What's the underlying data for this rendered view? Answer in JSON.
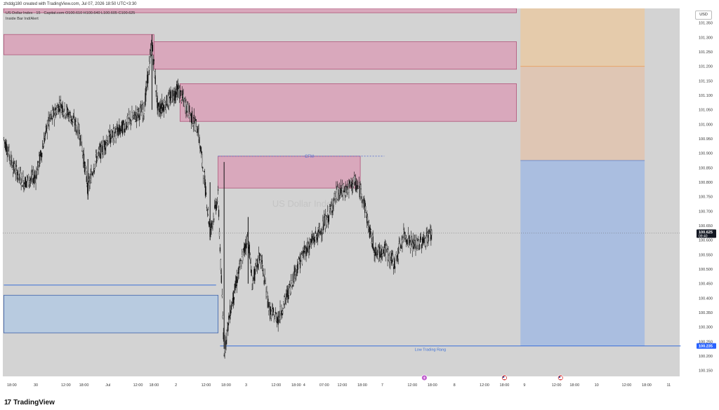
{
  "header": {
    "created_text": "zhddg180 created with TradingView.com, Jul 07, 2026 18:50 UTC+3:30"
  },
  "legend": {
    "symbol_line": "US Dollar Index · 15 · Capital.com  O100.610  H100.640  L100.605  C100.625",
    "indicator": "Inside Bar Ind/Alert"
  },
  "currency_button": "USD",
  "watermark": {
    "symbol": "DXY, 15",
    "name": "US Dollar Index"
  },
  "footer": {
    "logo_mark": "17",
    "logo_text": "TradingView"
  },
  "colors": {
    "supply_zone_fill": "#d9a8bc",
    "supply_zone_border": "#b0557a",
    "demand_zone_fill": "#b8cbe0",
    "demand_zone_border": "#3a5fa8",
    "long_target_fill": "#e8c9a3",
    "long_stop_fill": "#a8bde0",
    "plot_background": "#d3d3d3",
    "candle": "#111111",
    "low_line": "#3a6fd8",
    "price_badge": "#131722",
    "low_badge": "#2962ff"
  },
  "chart_data": {
    "type": "candlestick",
    "symbol": "DXY",
    "timeframe": "15",
    "ylim": [
      100.13,
      101.4
    ],
    "y_ticks": [
      "101.350",
      "101.300",
      "101.250",
      "101.200",
      "101.150",
      "101.100",
      "101.050",
      "101.000",
      "100.950",
      "100.900",
      "100.850",
      "100.800",
      "100.750",
      "100.700",
      "100.650",
      "100.600",
      "100.550",
      "100.500",
      "100.450",
      "100.400",
      "100.350",
      "100.300",
      "100.250",
      "100.200",
      "100.150"
    ],
    "x_ticks": [
      {
        "label": "18:00",
        "bar": 4
      },
      {
        "label": "30",
        "bar": 16
      },
      {
        "label": "12:00",
        "bar": 31
      },
      {
        "label": "18:00",
        "bar": 40
      },
      {
        "label": "Jul",
        "bar": 52
      },
      {
        "label": "12:00",
        "bar": 67
      },
      {
        "label": "18:00",
        "bar": 75
      },
      {
        "label": "2",
        "bar": 86
      },
      {
        "label": "12:00",
        "bar": 101
      },
      {
        "label": "18:00",
        "bar": 111
      },
      {
        "label": "3",
        "bar": 121
      },
      {
        "label": "12:00",
        "bar": 136
      },
      {
        "label": "18:00",
        "bar": 146
      },
      {
        "label": "4",
        "bar": 150
      },
      {
        "label": "07:00",
        "bar": 160
      },
      {
        "label": "12:00",
        "bar": 169
      },
      {
        "label": "18:00",
        "bar": 179
      },
      {
        "label": "7",
        "bar": 189
      },
      {
        "label": "12:00",
        "bar": 204
      },
      {
        "label": "18:00",
        "bar": 214
      },
      {
        "label": "8",
        "bar": 225
      },
      {
        "label": "12:00",
        "bar": 240
      },
      {
        "label": "18:00",
        "bar": 250
      },
      {
        "label": "9",
        "bar": 260
      },
      {
        "label": "12:00",
        "bar": 276
      },
      {
        "label": "18:00",
        "bar": 285
      },
      {
        "label": "10",
        "bar": 296
      },
      {
        "label": "12:00",
        "bar": 311
      },
      {
        "label": "18:00",
        "bar": 321
      },
      {
        "label": "11",
        "bar": 332
      }
    ],
    "total_bars": 338,
    "price_path": [
      {
        "bar": 0,
        "price": 100.95
      },
      {
        "bar": 5,
        "price": 100.85
      },
      {
        "bar": 10,
        "price": 100.8
      },
      {
        "bar": 16,
        "price": 100.82
      },
      {
        "bar": 22,
        "price": 101.0
      },
      {
        "bar": 28,
        "price": 101.07
      },
      {
        "bar": 33,
        "price": 101.03
      },
      {
        "bar": 38,
        "price": 100.97
      },
      {
        "bar": 42,
        "price": 100.78
      },
      {
        "bar": 46,
        "price": 100.88
      },
      {
        "bar": 52,
        "price": 100.95
      },
      {
        "bar": 58,
        "price": 100.98
      },
      {
        "bar": 64,
        "price": 101.02
      },
      {
        "bar": 70,
        "price": 101.05
      },
      {
        "bar": 74,
        "price": 101.28
      },
      {
        "bar": 77,
        "price": 101.05
      },
      {
        "bar": 82,
        "price": 101.08
      },
      {
        "bar": 87,
        "price": 101.12
      },
      {
        "bar": 92,
        "price": 101.05
      },
      {
        "bar": 97,
        "price": 100.98
      },
      {
        "bar": 100,
        "price": 100.82
      },
      {
        "bar": 103,
        "price": 100.63
      },
      {
        "bar": 107,
        "price": 100.75
      },
      {
        "bar": 110,
        "price": 100.22
      },
      {
        "bar": 113,
        "price": 100.35
      },
      {
        "bar": 117,
        "price": 100.48
      },
      {
        "bar": 122,
        "price": 100.62
      },
      {
        "bar": 124,
        "price": 100.45
      },
      {
        "bar": 128,
        "price": 100.55
      },
      {
        "bar": 133,
        "price": 100.35
      },
      {
        "bar": 137,
        "price": 100.33
      },
      {
        "bar": 141,
        "price": 100.4
      },
      {
        "bar": 146,
        "price": 100.5
      },
      {
        "bar": 151,
        "price": 100.57
      },
      {
        "bar": 157,
        "price": 100.62
      },
      {
        "bar": 162,
        "price": 100.68
      },
      {
        "bar": 166,
        "price": 100.76
      },
      {
        "bar": 170,
        "price": 100.77
      },
      {
        "bar": 175,
        "price": 100.8
      },
      {
        "bar": 179,
        "price": 100.76
      },
      {
        "bar": 183,
        "price": 100.62
      },
      {
        "bar": 186,
        "price": 100.55
      },
      {
        "bar": 190,
        "price": 100.57
      },
      {
        "bar": 195,
        "price": 100.52
      },
      {
        "bar": 200,
        "price": 100.62
      },
      {
        "bar": 205,
        "price": 100.58
      },
      {
        "bar": 210,
        "price": 100.6
      },
      {
        "bar": 213,
        "price": 100.625
      }
    ],
    "supply_zones": [
      {
        "bar_start": 0,
        "bar_end": 256,
        "top": 101.4,
        "bottom": 101.385
      },
      {
        "bar_start": 0,
        "bar_end": 75,
        "top": 101.31,
        "bottom": 101.24
      },
      {
        "bar_start": 75,
        "bar_end": 256,
        "top": 101.285,
        "bottom": 101.19
      },
      {
        "bar_start": 88,
        "bar_end": 256,
        "top": 101.14,
        "bottom": 101.01
      },
      {
        "bar_start": 107,
        "bar_end": 178,
        "top": 100.89,
        "bottom": 100.78
      }
    ],
    "demand_zones": [
      {
        "bar_start": 0,
        "bar_end": 107,
        "top": 100.41,
        "bottom": 100.28
      }
    ],
    "horizontal_lines": [
      {
        "bar_start": 0,
        "bar_end": 106,
        "price": 100.445
      },
      {
        "bar_start": 108,
        "bar_end": 338,
        "price": 100.235
      }
    ],
    "cfm_line": {
      "bar_start": 107,
      "bar_end": 190,
      "price": 100.89,
      "label": "CFM"
    },
    "position_tool": {
      "bar_start": 258,
      "bar_end": 320,
      "target": 101.4,
      "entry": 101.2,
      "stop": 100.235
    },
    "current_price": {
      "value": "100.625",
      "countdown": "09:40",
      "price": 100.625
    },
    "low_label": {
      "value": "100.235",
      "text": "Low Trading Rang",
      "price": 100.235
    },
    "event_markers": [
      {
        "bar": 210,
        "icon": "lightning-icon"
      },
      {
        "bar": 250,
        "icon": "us-flag-icon"
      },
      {
        "bar": 278,
        "icon": "us-flag-icon"
      }
    ]
  }
}
